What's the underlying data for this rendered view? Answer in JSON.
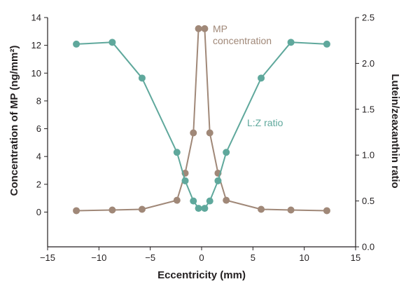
{
  "chart_data": {
    "type": "line",
    "xlabel": "Eccentricity (mm)",
    "ylabel": "Concentration of MP (ng/mm²)",
    "y2label": "Lutein/zeaxanthin ratio",
    "xlim": [
      -15,
      15
    ],
    "ylim": [
      -2.5,
      14
    ],
    "y2lim": [
      0.0,
      2.5
    ],
    "x_ticks": [
      "−15",
      "−10",
      "−5",
      "0",
      "5",
      "10",
      "15"
    ],
    "y_ticks": [
      "0",
      "2",
      "4",
      "6",
      "8",
      "10",
      "12",
      "14"
    ],
    "y2_ticks": [
      "0.0",
      "0.5",
      "1.0",
      "1.5",
      "2.0",
      "2.5"
    ],
    "grid": false,
    "series": [
      {
        "name": "MP concentration",
        "axis": "left",
        "color": "#a08878",
        "x": [
          -12.2,
          -8.7,
          -5.8,
          -2.4,
          -1.6,
          -0.8,
          -0.3,
          0.3,
          0.8,
          1.6,
          2.4,
          5.8,
          8.7,
          12.2
        ],
        "y": [
          0.1,
          0.15,
          0.2,
          0.85,
          2.8,
          5.7,
          13.2,
          13.2,
          5.7,
          2.8,
          0.85,
          0.2,
          0.15,
          0.1
        ]
      },
      {
        "name": "L:Z ratio",
        "axis": "right",
        "color": "#5fa89c",
        "x": [
          -12.2,
          -8.7,
          -5.8,
          -2.4,
          -1.6,
          -0.8,
          -0.3,
          0.3,
          0.8,
          1.6,
          2.4,
          5.8,
          8.7,
          12.2
        ],
        "y": [
          2.21,
          2.23,
          1.84,
          1.03,
          0.72,
          0.5,
          0.42,
          0.42,
          0.5,
          0.72,
          1.03,
          1.84,
          2.23,
          2.21
        ]
      }
    ],
    "annotations": [
      {
        "series": "MP concentration",
        "lines": [
          "MP",
          "concentration"
        ]
      },
      {
        "series": "L:Z ratio",
        "lines": [
          "L:Z ratio"
        ]
      }
    ]
  }
}
